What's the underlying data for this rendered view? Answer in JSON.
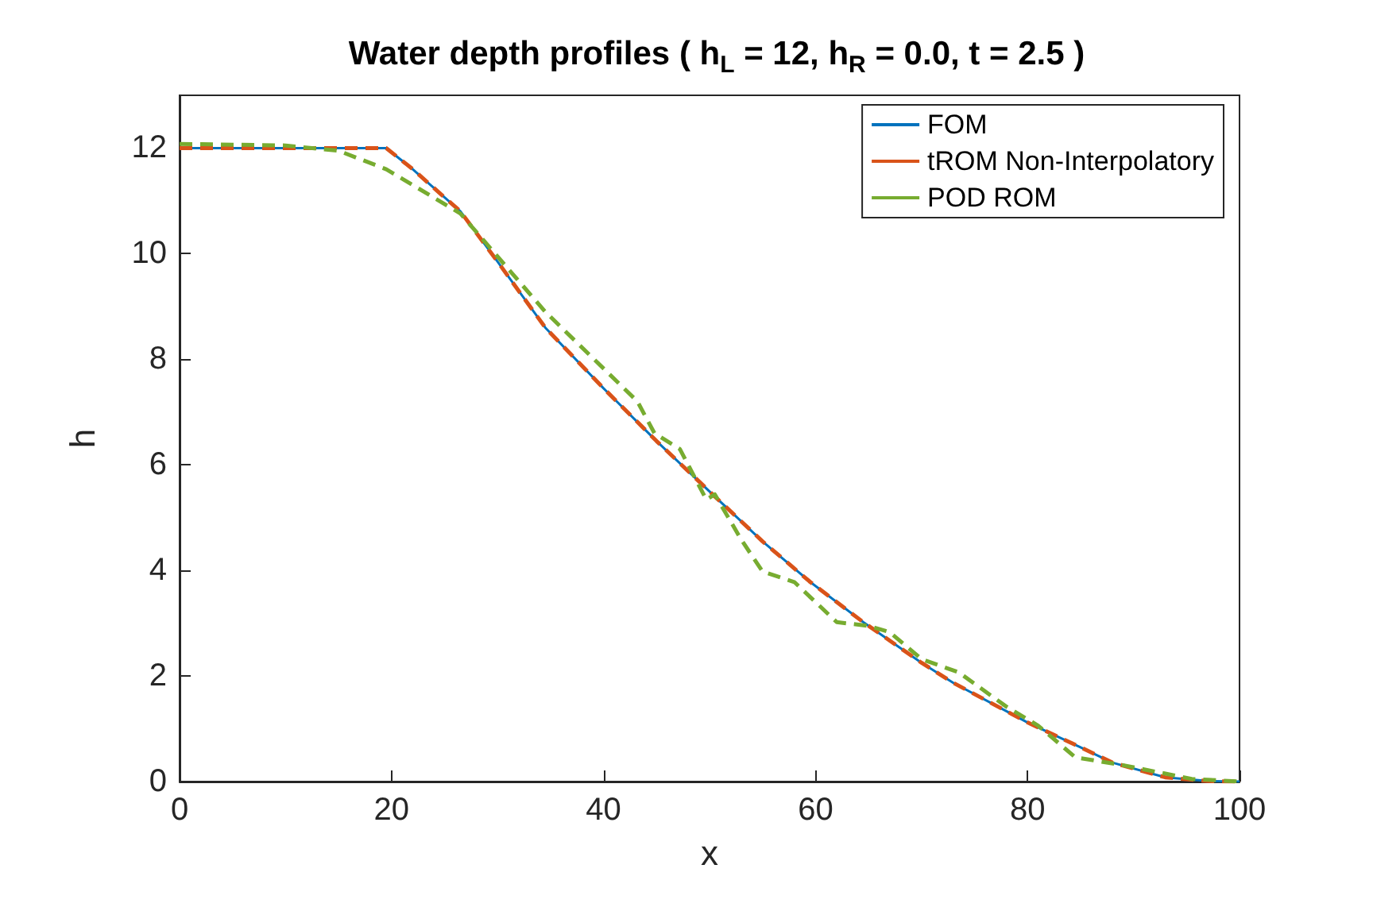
{
  "chart_data": {
    "type": "line",
    "title": "Water depth profiles ( h$_{L}$ = 12, h$_{R}$ = 0.0, t = 2.5 )",
    "xlabel": "x",
    "ylabel": "h",
    "xlim": [
      0,
      100
    ],
    "xticks": [
      0,
      20,
      40,
      60,
      80,
      100
    ],
    "ylim": [
      0,
      13
    ],
    "yticks": [
      0,
      2,
      4,
      6,
      8,
      10,
      12
    ],
    "grid": false,
    "legend": "top right",
    "marker": "none",
    "series": [
      {
        "name": "FOM",
        "color": "#0072bd",
        "line_style": "solid",
        "x": [
          0,
          17,
          19.5,
          22,
          26.5,
          30,
          34.5,
          40,
          45,
          50.5,
          55,
          59.5,
          64.5,
          70,
          73,
          80,
          85,
          88,
          93,
          97,
          100
        ],
        "values": [
          12,
          12,
          12,
          11.6,
          10.8,
          9.85,
          8.6,
          7.45,
          6.45,
          5.4,
          4.55,
          3.78,
          3.02,
          2.25,
          1.87,
          1.12,
          0.65,
          0.36,
          0.08,
          0.01,
          0
        ]
      },
      {
        "name": "tROM Non-Interpolatory",
        "color": "#d95319",
        "line_style": "dashed",
        "x": [
          0,
          17,
          19.5,
          22,
          26.5,
          30,
          34.5,
          40,
          45,
          50.5,
          55,
          59.5,
          64.5,
          70,
          73,
          80,
          85,
          88,
          93,
          97,
          100
        ],
        "values": [
          12,
          12,
          12,
          11.6,
          10.8,
          9.85,
          8.6,
          7.45,
          6.45,
          5.4,
          4.55,
          3.78,
          3.02,
          2.25,
          1.87,
          1.12,
          0.65,
          0.36,
          0.08,
          0.01,
          0
        ]
      },
      {
        "name": "POD ROM",
        "color": "#77ac30",
        "line_style": "dashed",
        "x": [
          0,
          10,
          15,
          19.5,
          26.5,
          34.5,
          43.2,
          44.8,
          47.2,
          49.7,
          50.5,
          53,
          55,
          58,
          62,
          65,
          67,
          70,
          73.5,
          78,
          81,
          84.5,
          89,
          95.5,
          100
        ],
        "values": [
          12.08,
          12.05,
          11.95,
          11.6,
          10.76,
          8.9,
          7.2,
          6.6,
          6.3,
          5.34,
          5.44,
          4.58,
          3.98,
          3.78,
          3.02,
          2.95,
          2.83,
          2.32,
          2.07,
          1.42,
          1.06,
          0.46,
          0.31,
          0.05,
          0
        ]
      }
    ]
  }
}
